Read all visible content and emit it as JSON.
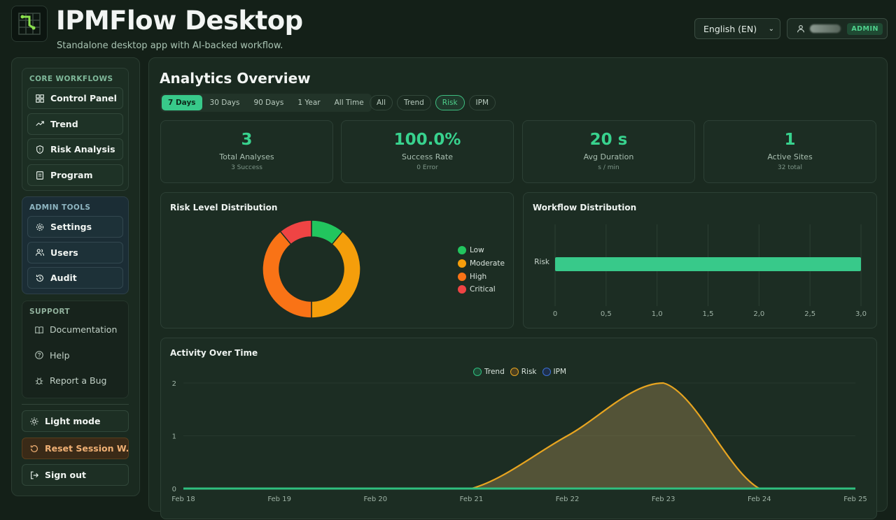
{
  "header": {
    "title": "IPMFlow Desktop",
    "subtitle": "Standalone desktop app with AI-backed workflow.",
    "language": "English (EN)",
    "role_badge": "ADMIN"
  },
  "sidebar": {
    "core": {
      "label": "CORE WORKFLOWS",
      "items": [
        {
          "label": "Control Panel",
          "icon": "dashboard-grid-icon"
        },
        {
          "label": "Trend",
          "icon": "trend-up-icon"
        },
        {
          "label": "Risk Analysis",
          "icon": "shield-icon"
        },
        {
          "label": "Program",
          "icon": "document-icon"
        }
      ]
    },
    "admin": {
      "label": "ADMIN TOOLS",
      "items": [
        {
          "label": "Settings",
          "icon": "gear-icon"
        },
        {
          "label": "Users",
          "icon": "users-icon"
        },
        {
          "label": "Audit",
          "icon": "history-icon"
        }
      ]
    },
    "support": {
      "label": "SUPPORT",
      "items": [
        {
          "label": "Documentation",
          "icon": "book-icon"
        },
        {
          "label": "Help",
          "icon": "help-circle-icon"
        },
        {
          "label": "Report a Bug",
          "icon": "bug-icon"
        }
      ]
    },
    "footer": {
      "light_mode": "Light mode",
      "reset_session": "Reset Session W...",
      "sign_out": "Sign out"
    }
  },
  "main": {
    "title": "Analytics Overview",
    "ranges": [
      "7 Days",
      "30 Days",
      "90 Days",
      "1 Year",
      "All Time"
    ],
    "active_range": "7 Days",
    "workflow_filters": [
      "All",
      "Trend",
      "Risk",
      "IPM"
    ],
    "active_workflow": "Risk",
    "stats": [
      {
        "value": "3",
        "label": "Total Analyses",
        "sub": "3 Success"
      },
      {
        "value": "100.0%",
        "label": "Success Rate",
        "sub": "0 Error"
      },
      {
        "value": "20 s",
        "label": "Avg Duration",
        "sub": "s / min"
      },
      {
        "value": "1",
        "label": "Active Sites",
        "sub": "32 total"
      }
    ]
  },
  "colors": {
    "accent": "#38c98a",
    "low": "#22c55e",
    "moderate": "#f59e0b",
    "high": "#f97316",
    "critical": "#ef4444"
  },
  "chart_data": [
    {
      "type": "pie",
      "title": "Risk Level Distribution",
      "categories": [
        "Low",
        "Moderate",
        "High",
        "Critical"
      ],
      "values": [
        0.33,
        1.17,
        1.17,
        0.33
      ],
      "legend": "right"
    },
    {
      "type": "bar",
      "orientation": "horizontal",
      "title": "Workflow Distribution",
      "categories": [
        "Risk"
      ],
      "values": [
        3
      ],
      "xlim": [
        0,
        3
      ],
      "x_ticks": [
        "0",
        "0,5",
        "1,0",
        "1,5",
        "2,0",
        "2,5",
        "3,0"
      ],
      "grid": true
    },
    {
      "type": "area",
      "title": "Activity Over Time",
      "categories": [
        "Feb 18",
        "Feb 19",
        "Feb 20",
        "Feb 21",
        "Feb 22",
        "Feb 23",
        "Feb 24",
        "Feb 25"
      ],
      "series": [
        {
          "name": "Trend",
          "values": [
            0,
            0,
            0,
            0,
            0,
            0,
            0,
            0
          ]
        },
        {
          "name": "Risk",
          "values": [
            0,
            0,
            0,
            0,
            1,
            2,
            0,
            0
          ]
        },
        {
          "name": "IPM",
          "values": [
            0,
            0,
            0,
            0,
            0,
            0,
            0,
            0
          ]
        }
      ],
      "y_ticks": [
        "0",
        "1",
        "2"
      ],
      "ylim": [
        0,
        2
      ],
      "legend": "top"
    }
  ]
}
